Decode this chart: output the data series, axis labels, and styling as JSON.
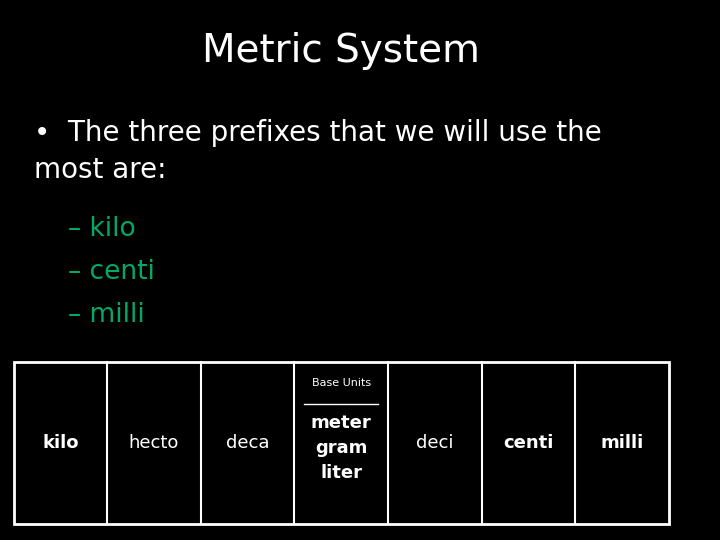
{
  "title": "Metric System",
  "title_color": "#ffffff",
  "title_fontsize": 28,
  "background_color": "#000000",
  "bullet_text_color": "#ffffff",
  "bullet_fontsize": 20,
  "bullet_text": "The three prefixes that we will use the\nmost are:",
  "sub_items": [
    "– kilo",
    "– centi",
    "– milli"
  ],
  "sub_item_color": "#00aa66",
  "sub_item_fontsize": 19,
  "table_cells": [
    "kilo",
    "hecto",
    "deca",
    "meter\ngram\nliter",
    "deci",
    "centi",
    "milli"
  ],
  "table_bold": [
    true,
    false,
    false,
    true,
    false,
    true,
    true
  ],
  "base_units_label": "Base Units",
  "base_units_index": 3,
  "table_text_color": "#ffffff",
  "table_border_color": "#ffffff",
  "table_bg_color": "#000000"
}
